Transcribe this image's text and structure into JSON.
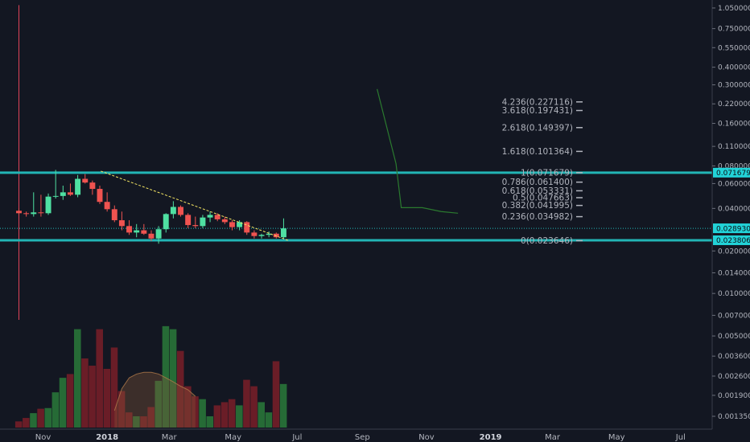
{
  "colors": {
    "background": "#131722",
    "axis_text": "#b2b5be",
    "up": "#26a69a",
    "up_bright": "#4fe0a2",
    "down": "#ef5350",
    "down_dark": "#b4283a",
    "volume_up": "#2a7a3a",
    "volume_down": "#7a1f28",
    "support_resistance": "#22b5b5",
    "trendline": "#f5e663",
    "vertical_marker": "#e0455a",
    "forecast_line": "#2b7a2f",
    "price_tag": "#22d3d8"
  },
  "chart_data": {
    "type": "candlestick",
    "title": "",
    "xlabel": "",
    "ylabel": "",
    "y_scale": "log",
    "ylim": [
      0.0012,
      1.15
    ],
    "x_range": [
      "2017-09-21",
      "2019-07-31"
    ],
    "x_ticks": [
      {
        "label": "Nov",
        "date": "2017-11-01"
      },
      {
        "label": "2018",
        "date": "2018-01-01",
        "bold": true
      },
      {
        "label": "Mar",
        "date": "2018-03-01"
      },
      {
        "label": "May",
        "date": "2018-05-01"
      },
      {
        "label": "Jul",
        "date": "2018-07-01"
      },
      {
        "label": "Sep",
        "date": "2018-09-01"
      },
      {
        "label": "Nov",
        "date": "2018-11-01"
      },
      {
        "label": "2019",
        "date": "2019-01-01",
        "bold": true
      },
      {
        "label": "Mar",
        "date": "2019-03-01"
      },
      {
        "label": "May",
        "date": "2019-05-01"
      },
      {
        "label": "Jul",
        "date": "2019-07-01"
      }
    ],
    "y_ticks": [
      "1.050000",
      "0.750000",
      "0.550000",
      "0.400000",
      "0.300000",
      "0.220000",
      "0.160000",
      "0.110000",
      "0.080000",
      "0.060000",
      "0.040000",
      "0.020000",
      "0.014000",
      "0.010000",
      "0.007000",
      "0.005000",
      "0.003600",
      "0.002600",
      "0.001900",
      "0.001350"
    ],
    "price_tags": [
      {
        "label": "0.071679",
        "value": 0.071679
      },
      {
        "label": "0.028930",
        "value": 0.02893
      },
      {
        "label": "0.023806",
        "value": 0.023806
      }
    ],
    "horizontal_lines": [
      0.071679,
      0.023806
    ],
    "current_price_line": 0.02893,
    "trendline": [
      {
        "date": "2017-12-26",
        "value": 0.0735
      },
      {
        "date": "2018-06-22",
        "value": 0.0238
      }
    ],
    "vertical_marker": {
      "date": "2017-10-09",
      "from": 0.0065,
      "to": 1.1
    },
    "fibonacci": [
      {
        "label": "4.236(0.227116)",
        "value": 0.227116
      },
      {
        "label": "3.618(0.197431)",
        "value": 0.197431
      },
      {
        "label": "2.618(0.149397)",
        "value": 0.149397
      },
      {
        "label": "1.618(0.101364)",
        "value": 0.101364
      },
      {
        "label": "1(0.071679)",
        "value": 0.071679
      },
      {
        "label": "0.786(0.061400)",
        "value": 0.0614
      },
      {
        "label": "0.618(0.053331)",
        "value": 0.053331
      },
      {
        "label": "0.5(0.047663)",
        "value": 0.047663
      },
      {
        "label": "0.382(0.041995)",
        "value": 0.041995
      },
      {
        "label": "0.236(0.034982)",
        "value": 0.034982
      },
      {
        "label": "0(0.023646)",
        "value": 0.023646
      }
    ],
    "forecast_path": [
      {
        "date": "2018-09-15",
        "value": 0.28
      },
      {
        "date": "2018-10-03",
        "value": 0.083
      },
      {
        "date": "2018-10-08",
        "value": 0.0405
      },
      {
        "date": "2018-10-28",
        "value": 0.0405
      },
      {
        "date": "2018-11-15",
        "value": 0.038
      },
      {
        "date": "2018-12-01",
        "value": 0.037
      }
    ],
    "candles": [
      {
        "date": "2017-10-09",
        "open": 0.0385,
        "high": 0.04,
        "low": 0.036,
        "close": 0.037
      },
      {
        "date": "2017-10-16",
        "open": 0.037,
        "high": 0.038,
        "low": 0.035,
        "close": 0.0365
      },
      {
        "date": "2017-10-23",
        "open": 0.0365,
        "high": 0.052,
        "low": 0.035,
        "close": 0.0375
      },
      {
        "date": "2017-10-30",
        "open": 0.0375,
        "high": 0.05,
        "low": 0.035,
        "close": 0.037
      },
      {
        "date": "2017-11-06",
        "open": 0.037,
        "high": 0.051,
        "low": 0.036,
        "close": 0.0485
      },
      {
        "date": "2017-11-13",
        "open": 0.0485,
        "high": 0.075,
        "low": 0.047,
        "close": 0.049
      },
      {
        "date": "2017-11-20",
        "open": 0.049,
        "high": 0.058,
        "low": 0.046,
        "close": 0.052
      },
      {
        "date": "2017-11-27",
        "open": 0.052,
        "high": 0.06,
        "low": 0.049,
        "close": 0.05
      },
      {
        "date": "2017-12-04",
        "open": 0.05,
        "high": 0.069,
        "low": 0.048,
        "close": 0.0648
      },
      {
        "date": "2017-12-11",
        "open": 0.0648,
        "high": 0.07,
        "low": 0.06,
        "close": 0.061
      },
      {
        "date": "2017-12-18",
        "open": 0.061,
        "high": 0.063,
        "low": 0.05,
        "close": 0.055
      },
      {
        "date": "2017-12-25",
        "open": 0.055,
        "high": 0.058,
        "low": 0.043,
        "close": 0.0445
      },
      {
        "date": "2018-01-01",
        "open": 0.0445,
        "high": 0.052,
        "low": 0.038,
        "close": 0.0395
      },
      {
        "date": "2018-01-08",
        "open": 0.0395,
        "high": 0.042,
        "low": 0.032,
        "close": 0.033
      },
      {
        "date": "2018-01-15",
        "open": 0.033,
        "high": 0.038,
        "low": 0.028,
        "close": 0.03
      },
      {
        "date": "2018-01-22",
        "open": 0.03,
        "high": 0.033,
        "low": 0.026,
        "close": 0.027
      },
      {
        "date": "2018-01-29",
        "open": 0.027,
        "high": 0.031,
        "low": 0.025,
        "close": 0.028
      },
      {
        "date": "2018-02-05",
        "open": 0.028,
        "high": 0.031,
        "low": 0.026,
        "close": 0.0265
      },
      {
        "date": "2018-02-12",
        "open": 0.0265,
        "high": 0.028,
        "low": 0.0235,
        "close": 0.0245
      },
      {
        "date": "2018-02-19",
        "open": 0.0245,
        "high": 0.03,
        "low": 0.0225,
        "close": 0.0285
      },
      {
        "date": "2018-02-26",
        "open": 0.0285,
        "high": 0.037,
        "low": 0.027,
        "close": 0.0365
      },
      {
        "date": "2018-03-05",
        "open": 0.0365,
        "high": 0.045,
        "low": 0.034,
        "close": 0.041
      },
      {
        "date": "2018-03-12",
        "open": 0.041,
        "high": 0.042,
        "low": 0.035,
        "close": 0.036
      },
      {
        "date": "2018-03-19",
        "open": 0.036,
        "high": 0.037,
        "low": 0.029,
        "close": 0.0305
      },
      {
        "date": "2018-03-26",
        "open": 0.0305,
        "high": 0.035,
        "low": 0.029,
        "close": 0.03
      },
      {
        "date": "2018-04-02",
        "open": 0.03,
        "high": 0.036,
        "low": 0.029,
        "close": 0.0345
      },
      {
        "date": "2018-04-09",
        "open": 0.0345,
        "high": 0.038,
        "low": 0.032,
        "close": 0.036
      },
      {
        "date": "2018-04-16",
        "open": 0.036,
        "high": 0.037,
        "low": 0.0325,
        "close": 0.0335
      },
      {
        "date": "2018-04-23",
        "open": 0.0335,
        "high": 0.035,
        "low": 0.031,
        "close": 0.032
      },
      {
        "date": "2018-04-30",
        "open": 0.032,
        "high": 0.033,
        "low": 0.028,
        "close": 0.0295
      },
      {
        "date": "2018-05-07",
        "open": 0.0295,
        "high": 0.033,
        "low": 0.028,
        "close": 0.032
      },
      {
        "date": "2018-05-14",
        "open": 0.032,
        "high": 0.0325,
        "low": 0.026,
        "close": 0.027
      },
      {
        "date": "2018-05-21",
        "open": 0.027,
        "high": 0.028,
        "low": 0.0245,
        "close": 0.0255
      },
      {
        "date": "2018-05-28",
        "open": 0.0255,
        "high": 0.0265,
        "low": 0.0245,
        "close": 0.026
      },
      {
        "date": "2018-06-04",
        "open": 0.026,
        "high": 0.0275,
        "low": 0.025,
        "close": 0.0265
      },
      {
        "date": "2018-06-11",
        "open": 0.0265,
        "high": 0.027,
        "low": 0.0245,
        "close": 0.025
      },
      {
        "date": "2018-06-18",
        "open": 0.025,
        "high": 0.034,
        "low": 0.0245,
        "close": 0.0289
      }
    ],
    "volume": {
      "y_scale": "log",
      "values": [
        0.00118,
        0.00126,
        0.00138,
        0.0015,
        0.00152,
        0.00205,
        0.0027,
        0.0029,
        0.0068,
        0.0039,
        0.0034,
        0.0068,
        0.0032,
        0.0048,
        0.0021,
        0.0014,
        0.0013,
        0.0013,
        0.00155,
        0.00255,
        0.0072,
        0.0068,
        0.0045,
        0.0023,
        0.0019,
        0.0018,
        0.0013,
        0.0016,
        0.0017,
        0.0018,
        0.0016,
        0.0026,
        0.0023,
        0.0017,
        0.0014,
        0.0037,
        0.0024
      ],
      "moving_average": [
        0.00145,
        0.0022,
        0.0027,
        0.0029,
        0.003,
        0.003,
        0.0029,
        0.0027,
        0.0025,
        0.0023,
        0.00215,
        0.0019
      ]
    }
  }
}
